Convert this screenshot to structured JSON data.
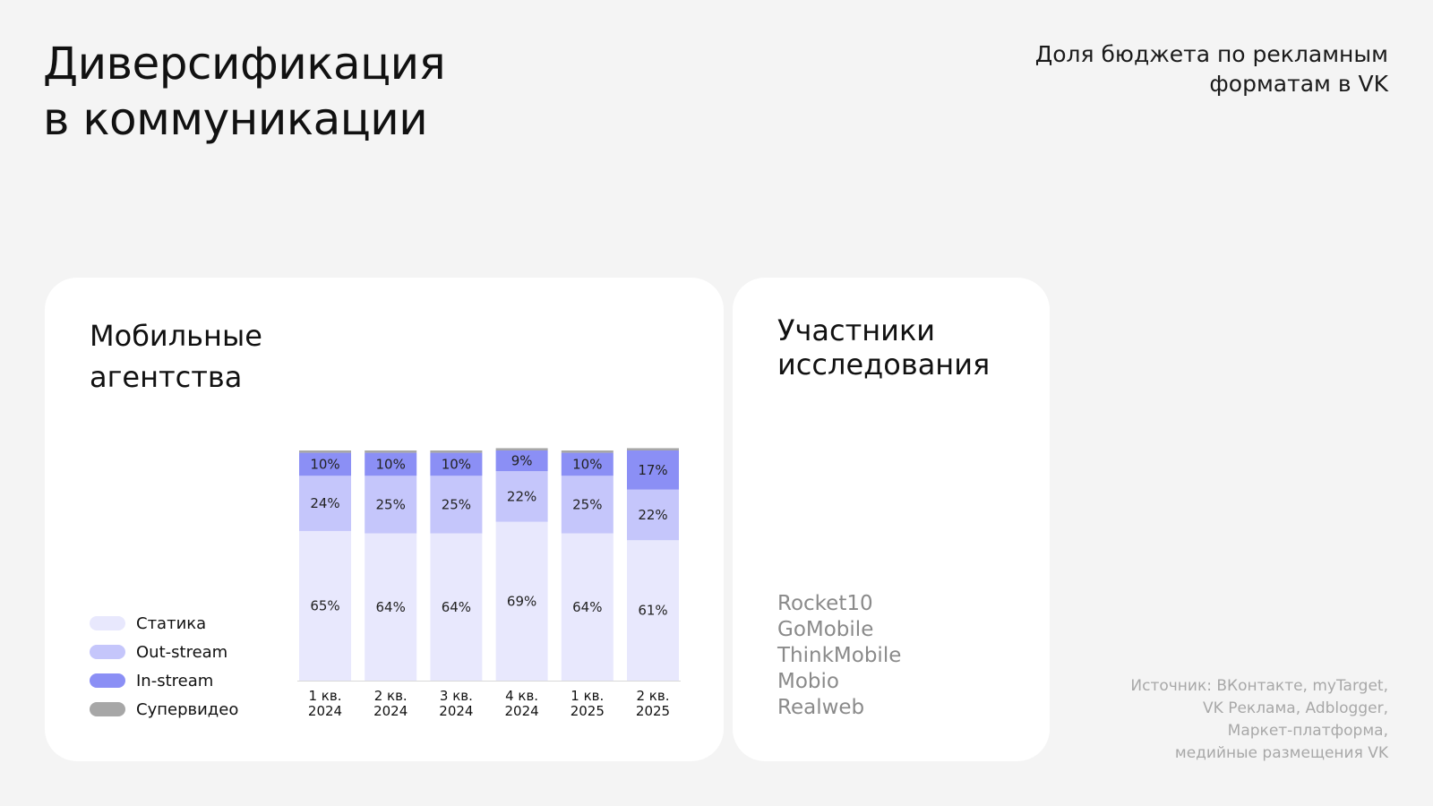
{
  "header": {
    "title_lines": [
      "Диверсификация",
      "в коммуникации"
    ],
    "subtitle_lines": [
      "Доля бюджета по рекламным",
      "форматам в VK"
    ]
  },
  "chart_card": {
    "title_lines": [
      "Мобильные",
      "агентства"
    ]
  },
  "legend": [
    {
      "label": "Статика",
      "color": "#e8e8fd"
    },
    {
      "label": "Out-stream",
      "color": "#c5c6fb"
    },
    {
      "label": "In-stream",
      "color": "#8b8ff5"
    },
    {
      "label": "Супервидео",
      "color": "#a7a7a7"
    }
  ],
  "chart_data": {
    "type": "bar",
    "stacked": true,
    "categories": [
      [
        "1 кв.",
        "2024"
      ],
      [
        "2 кв.",
        "2024"
      ],
      [
        "3 кв.",
        "2024"
      ],
      [
        "4 кв.",
        "2024"
      ],
      [
        "1 кв.",
        "2025"
      ],
      [
        "2 кв.",
        "2025"
      ]
    ],
    "series": [
      {
        "name": "Статика",
        "values": [
          65,
          64,
          64,
          69,
          64,
          61
        ],
        "labels": [
          "65%",
          "64%",
          "64%",
          "69%",
          "64%",
          "61%"
        ],
        "color": "#e8e8fd"
      },
      {
        "name": "Out-stream",
        "values": [
          24,
          25,
          25,
          22,
          25,
          22
        ],
        "labels": [
          "24%",
          "25%",
          "25%",
          "22%",
          "25%",
          "22%"
        ],
        "color": "#c5c6fb"
      },
      {
        "name": "In-stream",
        "values": [
          10,
          10,
          10,
          9,
          10,
          17
        ],
        "labels": [
          "10%",
          "10%",
          "10%",
          "9%",
          "10%",
          "17%"
        ],
        "color": "#8b8ff5"
      },
      {
        "name": "Супервидео",
        "values": [
          1,
          1,
          1,
          1,
          1,
          1
        ],
        "labels": [
          "",
          "",
          "",
          "",
          "",
          ""
        ],
        "color": "#a7a7a7"
      }
    ],
    "ylim": [
      0,
      100
    ]
  },
  "participants_card": {
    "title_lines": [
      "Участники",
      "исследования"
    ],
    "items": [
      "Rocket10",
      "GoMobile",
      "ThinkMobile",
      "Mobio",
      "Realweb"
    ]
  },
  "source_lines": [
    "Источник: ВКонтакте, myTarget,",
    "VK Реклама, Adblogger,",
    "Маркет-платформа,",
    "медийные размещения VK"
  ]
}
